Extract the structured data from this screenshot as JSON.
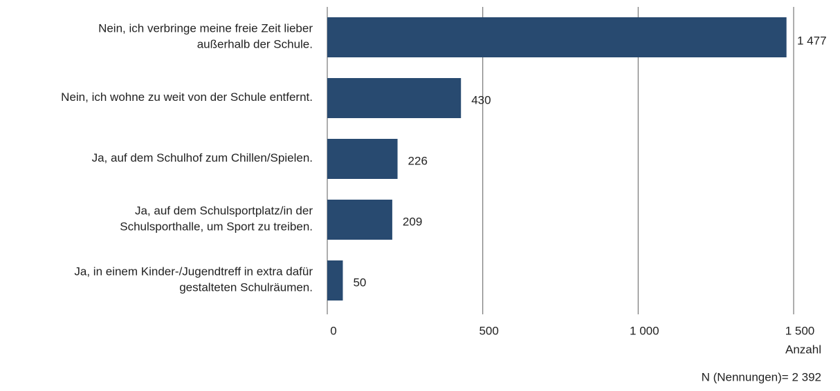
{
  "chart_data": {
    "type": "bar",
    "orientation": "horizontal",
    "categories": [
      "Nein, ich verbringe meine freie Zeit lieber\naußerhalb der Schule.",
      "Nein, ich wohne zu weit von der Schule entfernt.",
      "Ja, auf dem Schulhof zum Chillen/Spielen.",
      "Ja, auf dem Schulsportplatz/in der\nSchulsporthalle, um Sport zu treiben.",
      "Ja, in einem Kinder-/Jugendtreff in extra dafür\ngestalteten Schulräumen."
    ],
    "values": [
      1477,
      430,
      226,
      209,
      50
    ],
    "value_labels": [
      "1 477",
      "430",
      "226",
      "209",
      "50"
    ],
    "color": "#284a70",
    "xlim": [
      0,
      1500
    ],
    "xticks": [
      0,
      500,
      {
        "value": 1000,
        "label": "1 000"
      },
      {
        "value": 1500,
        "label": "1 500"
      }
    ],
    "xlabel": "Anzahl",
    "note": "N (Nennungen)= 2 392",
    "grid": true
  }
}
